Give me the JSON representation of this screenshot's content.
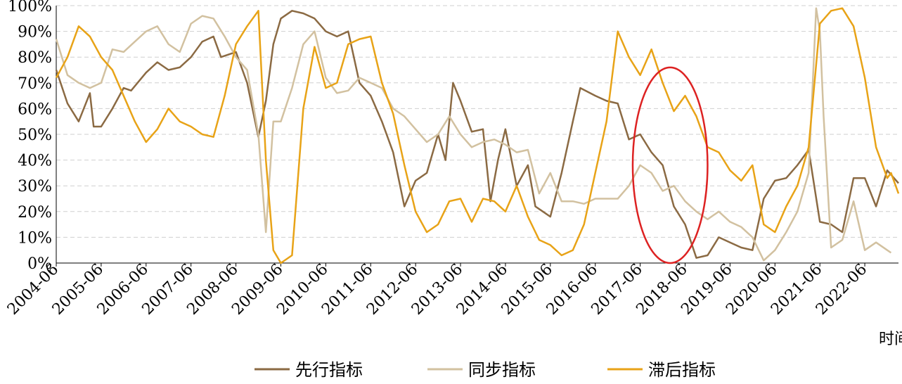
{
  "chart_data": {
    "type": "line",
    "title": "",
    "xlabel": "时间",
    "ylabel": "",
    "x_ticks": [
      "2004-06",
      "2005-06",
      "2006-06",
      "2007-06",
      "2008-06",
      "2009-06",
      "2010-06",
      "2011-06",
      "2012-06",
      "2013-06",
      "2014-06",
      "2015-06",
      "2016-06",
      "2017-06",
      "2018-06",
      "2019-06",
      "2020-06",
      "2021-06",
      "2022-06"
    ],
    "y_ticks": [
      "0%",
      "10%",
      "20%",
      "30%",
      "40%",
      "50%",
      "60%",
      "70%",
      "80%",
      "90%",
      "100%"
    ],
    "ylim": [
      0,
      100
    ],
    "xlim": [
      "2004-06",
      "2023-03"
    ],
    "grid": "horizontal dashed",
    "legend_position": "bottom",
    "series": [
      {
        "name": "先行指标",
        "color": "#8B6A43",
        "points": [
          [
            "2004-06",
            75
          ],
          [
            "2004-09",
            62
          ],
          [
            "2004-12",
            55
          ],
          [
            "2005-03",
            66
          ],
          [
            "2005-04",
            53
          ],
          [
            "2005-06",
            53
          ],
          [
            "2005-09",
            60
          ],
          [
            "2005-12",
            68
          ],
          [
            "2006-02",
            67
          ],
          [
            "2006-06",
            74
          ],
          [
            "2006-09",
            78
          ],
          [
            "2006-12",
            75
          ],
          [
            "2007-03",
            76
          ],
          [
            "2007-06",
            80
          ],
          [
            "2007-09",
            86
          ],
          [
            "2007-12",
            88
          ],
          [
            "2008-02",
            80
          ],
          [
            "2008-06",
            82
          ],
          [
            "2008-09",
            70
          ],
          [
            "2008-12",
            49
          ],
          [
            "2009-02",
            63
          ],
          [
            "2009-04",
            85
          ],
          [
            "2009-06",
            95
          ],
          [
            "2009-09",
            98
          ],
          [
            "2009-12",
            97
          ],
          [
            "2010-03",
            95
          ],
          [
            "2010-06",
            90
          ],
          [
            "2010-09",
            88
          ],
          [
            "2010-12",
            90
          ],
          [
            "2011-03",
            70
          ],
          [
            "2011-06",
            65
          ],
          [
            "2011-09",
            55
          ],
          [
            "2011-12",
            43
          ],
          [
            "2012-03",
            22
          ],
          [
            "2012-06",
            32
          ],
          [
            "2012-09",
            35
          ],
          [
            "2012-12",
            50
          ],
          [
            "2013-02",
            40
          ],
          [
            "2013-04",
            70
          ],
          [
            "2013-06",
            63
          ],
          [
            "2013-09",
            51
          ],
          [
            "2013-12",
            52
          ],
          [
            "2014-02",
            24
          ],
          [
            "2014-04",
            40
          ],
          [
            "2014-06",
            52
          ],
          [
            "2014-09",
            30
          ],
          [
            "2014-12",
            38
          ],
          [
            "2015-02",
            22
          ],
          [
            "2015-04",
            20
          ],
          [
            "2015-06",
            18
          ],
          [
            "2015-09",
            35
          ],
          [
            "2015-12",
            55
          ],
          [
            "2016-02",
            68
          ],
          [
            "2016-06",
            65
          ],
          [
            "2016-09",
            63
          ],
          [
            "2016-12",
            62
          ],
          [
            "2017-03",
            48
          ],
          [
            "2017-06",
            50
          ],
          [
            "2017-09",
            43
          ],
          [
            "2017-12",
            38
          ],
          [
            "2018-03",
            22
          ],
          [
            "2018-06",
            15
          ],
          [
            "2018-09",
            2
          ],
          [
            "2018-12",
            3
          ],
          [
            "2019-03",
            10
          ],
          [
            "2019-06",
            8
          ],
          [
            "2019-09",
            6
          ],
          [
            "2019-12",
            5
          ],
          [
            "2020-03",
            25
          ],
          [
            "2020-06",
            32
          ],
          [
            "2020-09",
            33
          ],
          [
            "2020-12",
            38
          ],
          [
            "2021-03",
            44
          ],
          [
            "2021-06",
            16
          ],
          [
            "2021-09",
            15
          ],
          [
            "2021-12",
            12
          ],
          [
            "2022-03",
            33
          ],
          [
            "2022-06",
            33
          ],
          [
            "2022-09",
            22
          ],
          [
            "2022-12",
            36
          ],
          [
            "2023-03",
            31
          ]
        ]
      },
      {
        "name": "同步指标",
        "color": "#D2C1A0",
        "points": [
          [
            "2004-06",
            87
          ],
          [
            "2004-09",
            73
          ],
          [
            "2004-12",
            70
          ],
          [
            "2005-03",
            68
          ],
          [
            "2005-06",
            70
          ],
          [
            "2005-09",
            83
          ],
          [
            "2005-12",
            82
          ],
          [
            "2006-03",
            86
          ],
          [
            "2006-06",
            90
          ],
          [
            "2006-09",
            92
          ],
          [
            "2006-12",
            85
          ],
          [
            "2007-03",
            82
          ],
          [
            "2007-06",
            93
          ],
          [
            "2007-09",
            96
          ],
          [
            "2007-12",
            95
          ],
          [
            "2008-03",
            88
          ],
          [
            "2008-06",
            80
          ],
          [
            "2008-09",
            75
          ],
          [
            "2008-12",
            50
          ],
          [
            "2009-02",
            12
          ],
          [
            "2009-04",
            55
          ],
          [
            "2009-06",
            55
          ],
          [
            "2009-09",
            68
          ],
          [
            "2009-12",
            85
          ],
          [
            "2010-03",
            90
          ],
          [
            "2010-06",
            72
          ],
          [
            "2010-09",
            66
          ],
          [
            "2010-12",
            67
          ],
          [
            "2011-03",
            72
          ],
          [
            "2011-06",
            70
          ],
          [
            "2011-09",
            68
          ],
          [
            "2011-12",
            60
          ],
          [
            "2012-03",
            57
          ],
          [
            "2012-06",
            52
          ],
          [
            "2012-09",
            47
          ],
          [
            "2012-12",
            50
          ],
          [
            "2013-03",
            57
          ],
          [
            "2013-06",
            50
          ],
          [
            "2013-09",
            45
          ],
          [
            "2013-12",
            47
          ],
          [
            "2014-03",
            48
          ],
          [
            "2014-06",
            46
          ],
          [
            "2014-09",
            43
          ],
          [
            "2014-12",
            44
          ],
          [
            "2015-03",
            27
          ],
          [
            "2015-06",
            35
          ],
          [
            "2015-09",
            24
          ],
          [
            "2015-12",
            24
          ],
          [
            "2016-03",
            23
          ],
          [
            "2016-06",
            25
          ],
          [
            "2016-09",
            25
          ],
          [
            "2016-12",
            25
          ],
          [
            "2017-03",
            30
          ],
          [
            "2017-06",
            38
          ],
          [
            "2017-09",
            35
          ],
          [
            "2017-12",
            28
          ],
          [
            "2018-03",
            30
          ],
          [
            "2018-06",
            24
          ],
          [
            "2018-09",
            20
          ],
          [
            "2018-12",
            17
          ],
          [
            "2019-03",
            20
          ],
          [
            "2019-06",
            16
          ],
          [
            "2019-09",
            14
          ],
          [
            "2019-12",
            10
          ],
          [
            "2020-03",
            1
          ],
          [
            "2020-06",
            5
          ],
          [
            "2020-09",
            12
          ],
          [
            "2020-12",
            20
          ],
          [
            "2021-03",
            35
          ],
          [
            "2021-05",
            99
          ],
          [
            "2021-06",
            90
          ],
          [
            "2021-07",
            57
          ],
          [
            "2021-09",
            6
          ],
          [
            "2021-12",
            9
          ],
          [
            "2022-03",
            24
          ],
          [
            "2022-06",
            5
          ],
          [
            "2022-09",
            8
          ],
          [
            "2022-12",
            5
          ],
          [
            "2023-01",
            4
          ]
        ]
      },
      {
        "name": "滞后指标",
        "color": "#E8A317",
        "points": [
          [
            "2004-06",
            72
          ],
          [
            "2004-09",
            80
          ],
          [
            "2004-12",
            92
          ],
          [
            "2005-03",
            88
          ],
          [
            "2005-06",
            80
          ],
          [
            "2005-09",
            75
          ],
          [
            "2005-12",
            65
          ],
          [
            "2006-03",
            55
          ],
          [
            "2006-06",
            47
          ],
          [
            "2006-09",
            52
          ],
          [
            "2006-12",
            60
          ],
          [
            "2007-03",
            55
          ],
          [
            "2007-06",
            53
          ],
          [
            "2007-09",
            50
          ],
          [
            "2007-12",
            49
          ],
          [
            "2008-03",
            65
          ],
          [
            "2008-06",
            85
          ],
          [
            "2008-09",
            92
          ],
          [
            "2008-12",
            98
          ],
          [
            "2009-02",
            40
          ],
          [
            "2009-04",
            5
          ],
          [
            "2009-06",
            0
          ],
          [
            "2009-09",
            3
          ],
          [
            "2009-12",
            60
          ],
          [
            "2010-03",
            84
          ],
          [
            "2010-06",
            68
          ],
          [
            "2010-09",
            70
          ],
          [
            "2010-12",
            85
          ],
          [
            "2011-03",
            87
          ],
          [
            "2011-06",
            88
          ],
          [
            "2011-09",
            70
          ],
          [
            "2011-12",
            58
          ],
          [
            "2012-03",
            38
          ],
          [
            "2012-06",
            20
          ],
          [
            "2012-09",
            12
          ],
          [
            "2012-12",
            15
          ],
          [
            "2013-03",
            24
          ],
          [
            "2013-06",
            25
          ],
          [
            "2013-09",
            16
          ],
          [
            "2013-12",
            25
          ],
          [
            "2014-03",
            24
          ],
          [
            "2014-06",
            20
          ],
          [
            "2014-09",
            30
          ],
          [
            "2014-12",
            18
          ],
          [
            "2015-03",
            9
          ],
          [
            "2015-06",
            7
          ],
          [
            "2015-09",
            3
          ],
          [
            "2015-12",
            5
          ],
          [
            "2016-03",
            15
          ],
          [
            "2016-06",
            35
          ],
          [
            "2016-09",
            55
          ],
          [
            "2016-12",
            90
          ],
          [
            "2017-03",
            80
          ],
          [
            "2017-06",
            73
          ],
          [
            "2017-09",
            83
          ],
          [
            "2017-12",
            70
          ],
          [
            "2018-03",
            59
          ],
          [
            "2018-06",
            65
          ],
          [
            "2018-09",
            57
          ],
          [
            "2018-12",
            45
          ],
          [
            "2019-03",
            43
          ],
          [
            "2019-06",
            36
          ],
          [
            "2019-09",
            32
          ],
          [
            "2019-12",
            38
          ],
          [
            "2020-03",
            15
          ],
          [
            "2020-06",
            12
          ],
          [
            "2020-09",
            22
          ],
          [
            "2020-12",
            30
          ],
          [
            "2021-03",
            45
          ],
          [
            "2021-06",
            93
          ],
          [
            "2021-09",
            98
          ],
          [
            "2021-12",
            99
          ],
          [
            "2022-03",
            92
          ],
          [
            "2022-06",
            72
          ],
          [
            "2022-09",
            45
          ],
          [
            "2022-12",
            33
          ],
          [
            "2023-01",
            35
          ],
          [
            "2023-03",
            27
          ]
        ]
      }
    ],
    "annotations": [
      {
        "type": "ellipse",
        "color": "#DD2222",
        "center_x": "2018-02",
        "center_y": 38,
        "x_radius_months": 10,
        "y_radius": 38
      }
    ]
  }
}
